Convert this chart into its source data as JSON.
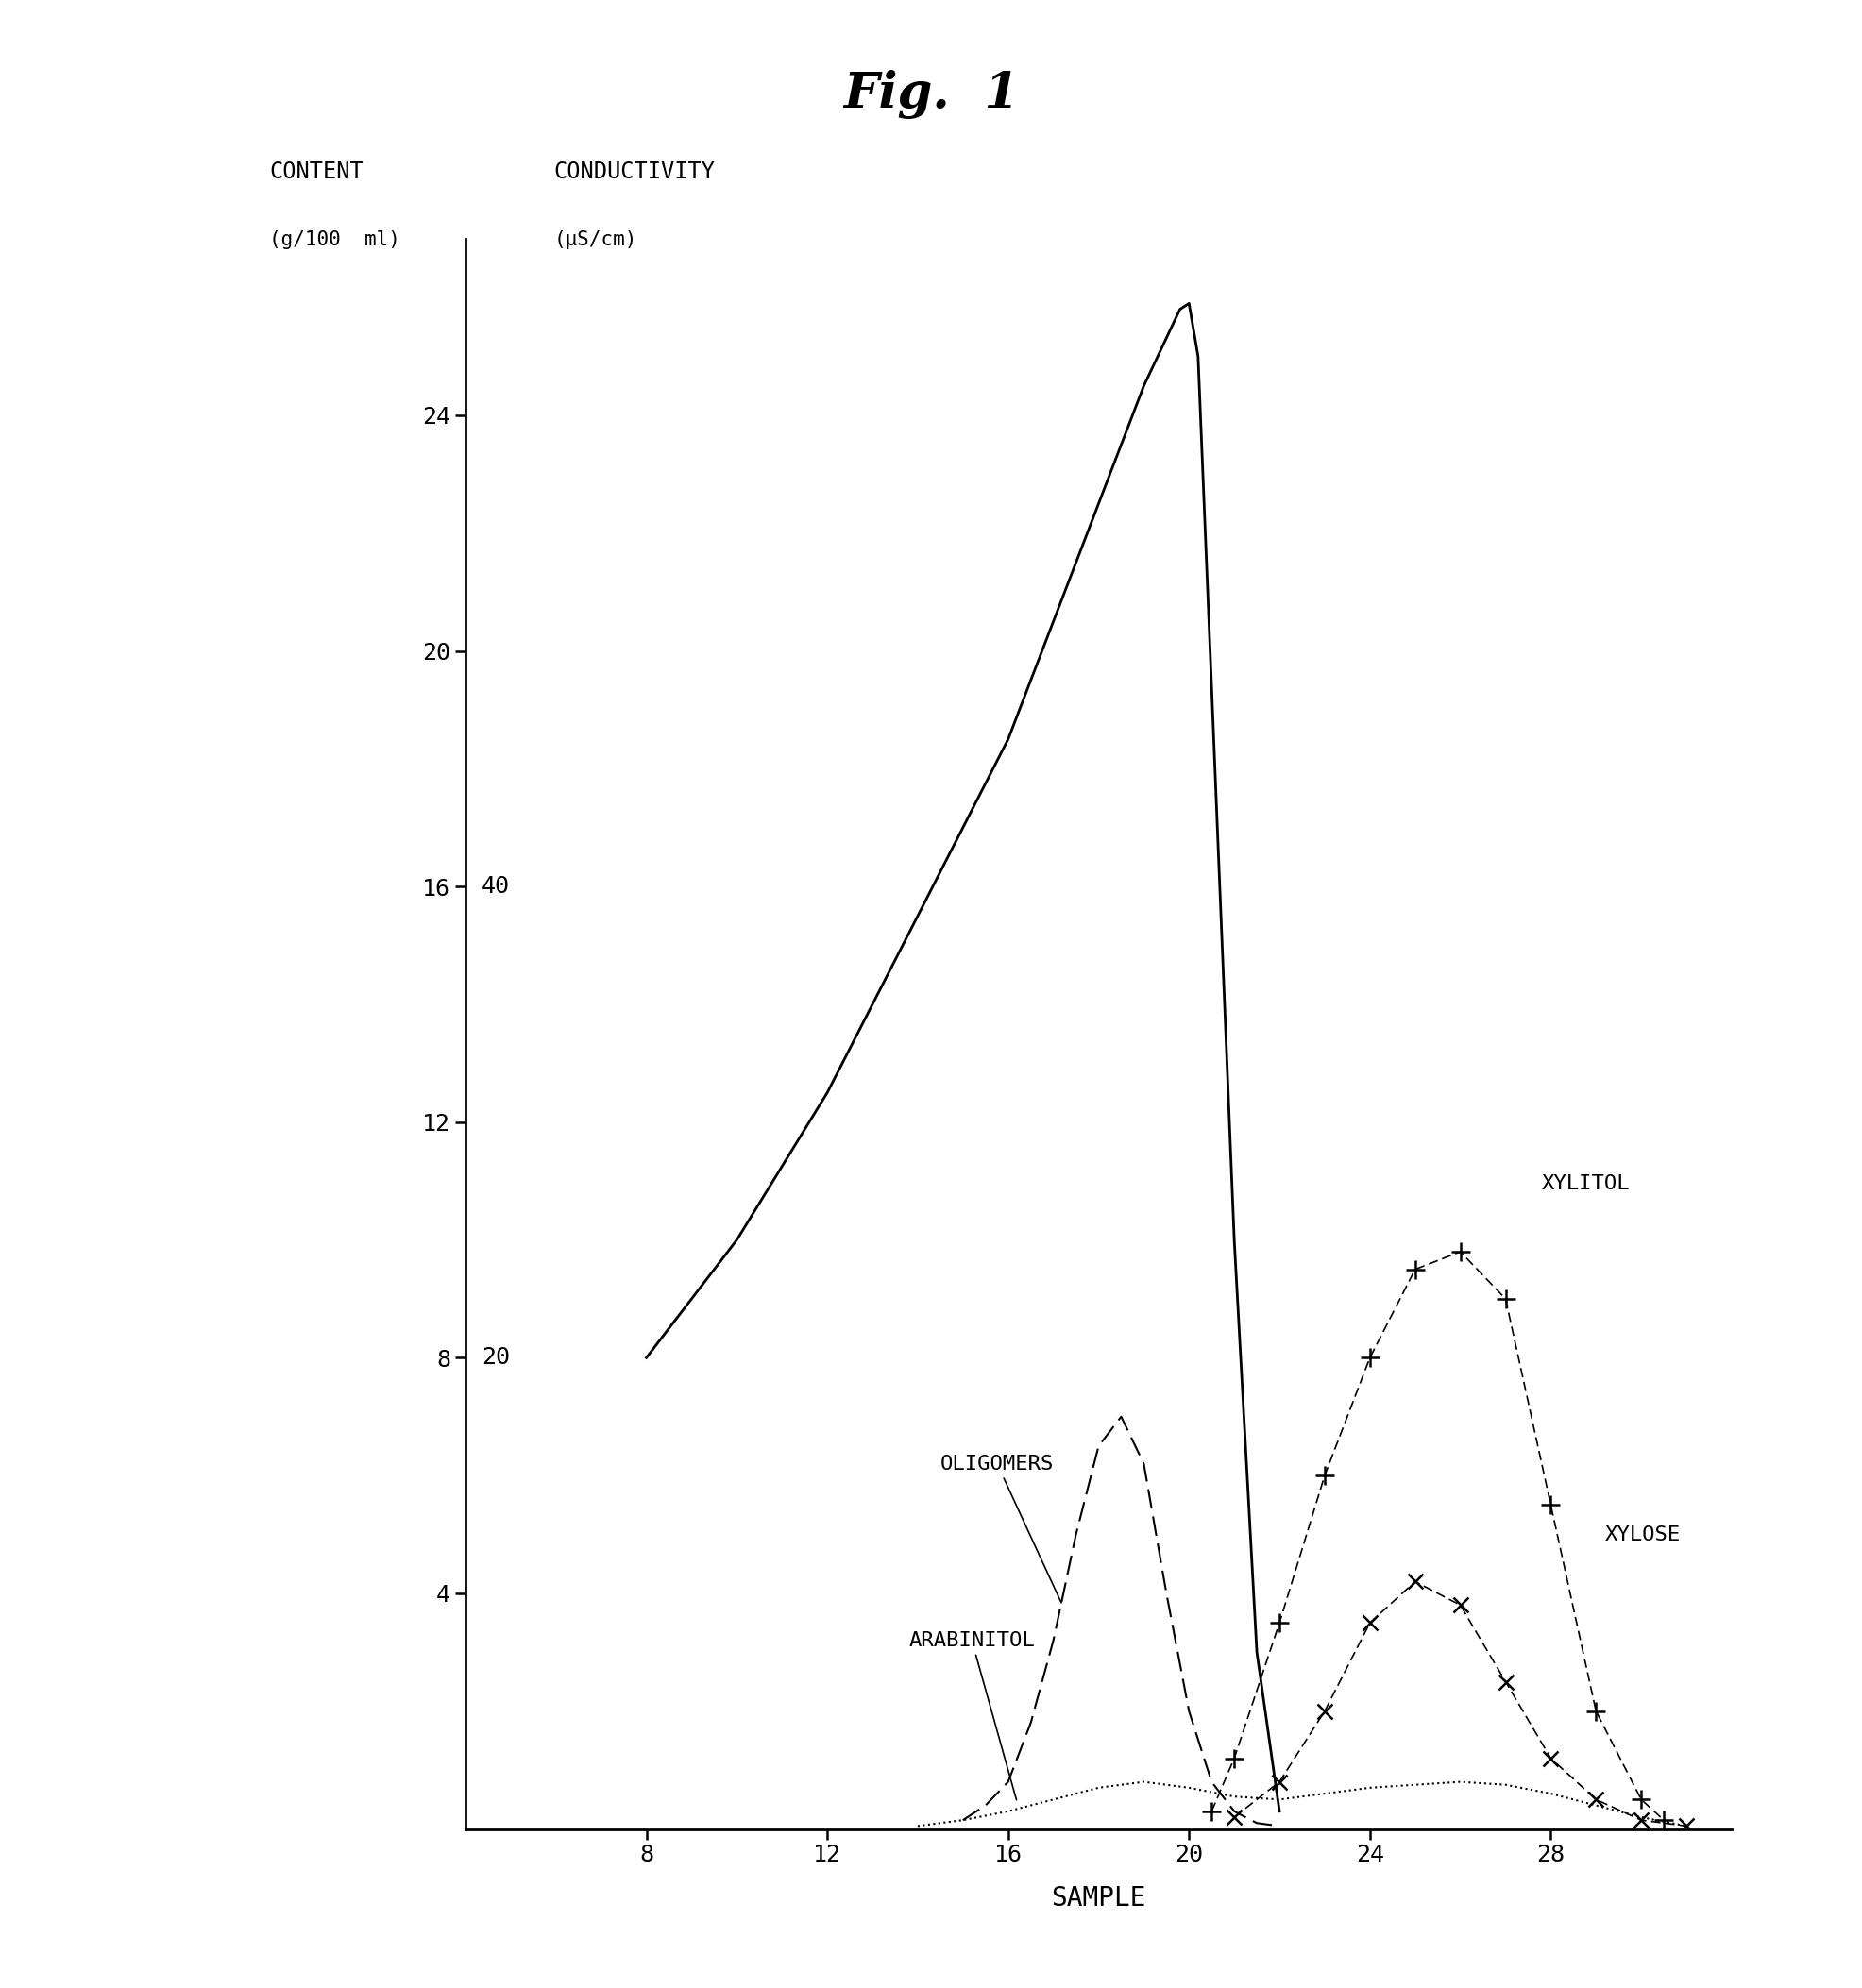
{
  "title": "Fig.  1",
  "title_fontsize": 38,
  "title_fontweight": "bold",
  "title_fontstyle": "italic",
  "xlabel": "SAMPLE",
  "xlabel_fontsize": 20,
  "left_yticks": [
    4,
    8,
    12,
    16,
    20,
    24
  ],
  "right_ytick_positions": [
    8,
    16
  ],
  "right_ytick_labels": [
    "20",
    "40"
  ],
  "xlim": [
    4,
    32
  ],
  "ylim": [
    0,
    27
  ],
  "xticks": [
    8,
    12,
    16,
    20,
    24,
    28
  ],
  "background_color": "#f5f5f5",
  "conductivity_x": [
    8.0,
    10.0,
    12.0,
    14.0,
    16.0,
    17.0,
    18.0,
    19.0,
    19.8,
    20.0,
    20.2,
    21.0,
    21.5,
    22.0
  ],
  "conductivity_y": [
    8.0,
    10.0,
    12.5,
    15.5,
    18.5,
    20.5,
    22.5,
    24.5,
    25.8,
    25.9,
    25.0,
    10.0,
    3.0,
    0.3
  ],
  "oligomers_x": [
    15.0,
    15.5,
    16.0,
    16.5,
    17.0,
    17.5,
    18.0,
    18.5,
    19.0,
    19.5,
    20.0,
    20.5,
    21.0,
    21.5,
    22.0
  ],
  "oligomers_y": [
    0.15,
    0.4,
    0.8,
    1.8,
    3.2,
    5.0,
    6.5,
    7.0,
    6.2,
    4.0,
    2.0,
    0.8,
    0.3,
    0.1,
    0.05
  ],
  "arabinitol_x": [
    14.0,
    15.0,
    16.0,
    17.0,
    18.0,
    19.0,
    20.0,
    21.0,
    22.0,
    23.0,
    24.0,
    25.0,
    26.0,
    27.0,
    28.0,
    29.0,
    30.0,
    31.0
  ],
  "arabinitol_y": [
    0.05,
    0.15,
    0.3,
    0.5,
    0.7,
    0.8,
    0.7,
    0.55,
    0.5,
    0.6,
    0.7,
    0.75,
    0.8,
    0.75,
    0.6,
    0.4,
    0.2,
    0.05
  ],
  "xylitol_x": [
    20.5,
    21.0,
    22.0,
    23.0,
    24.0,
    25.0,
    26.0,
    27.0,
    28.0,
    29.0,
    30.0,
    30.5
  ],
  "xylitol_y": [
    0.3,
    1.2,
    3.5,
    6.0,
    8.0,
    9.5,
    9.8,
    9.0,
    5.5,
    2.0,
    0.5,
    0.15
  ],
  "xylose_x": [
    21.0,
    22.0,
    23.0,
    24.0,
    25.0,
    26.0,
    27.0,
    28.0,
    29.0,
    30.0,
    31.0
  ],
  "xylose_y": [
    0.2,
    0.8,
    2.0,
    3.5,
    4.2,
    3.8,
    2.5,
    1.2,
    0.5,
    0.15,
    0.05
  ],
  "font_family": "monospace"
}
